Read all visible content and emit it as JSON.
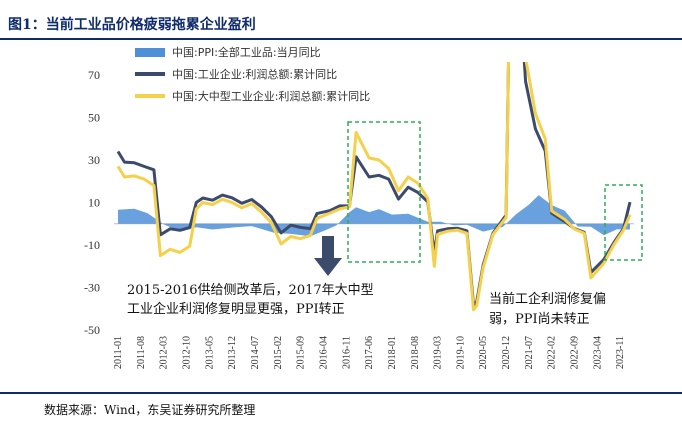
{
  "title": "图1：当前工业品价格疲弱拖累企业盈利",
  "source": "数据来源：Wind，东吴证券研究所整理",
  "chart_data": {
    "type": "bar+line",
    "ylim": [
      -50,
      75
    ],
    "yticks": [
      70,
      50,
      30,
      10,
      -10,
      -30,
      -50
    ],
    "xtick_labels": [
      "2011-01",
      "2011-08",
      "2012-03",
      "2012-10",
      "2013-05",
      "2013-12",
      "2014-07",
      "2015-02",
      "2015-09",
      "2016-04",
      "2016-11",
      "2017-06",
      "2018-01",
      "2018-08",
      "2019-03",
      "2019-10",
      "2020-05",
      "2020-12",
      "2021-07",
      "2022-02",
      "2022-09",
      "2023-04",
      "2023-11"
    ],
    "legend": [
      {
        "label": "中国:PPI:全部工业品:当月同比",
        "kind": "area",
        "color": "#4f8fd8"
      },
      {
        "label": "中国:工业企业:利润总额:累计同比",
        "kind": "line",
        "color": "#3c4a6b"
      },
      {
        "label": "中国:大中型工业企业:利润总额:累计同比",
        "kind": "line",
        "color": "#f5d04a"
      }
    ],
    "series": [
      {
        "name": "中国:PPI:全部工业品:当月同比",
        "x": [
          "2011-01",
          "2011-06",
          "2011-10",
          "2012-03",
          "2012-08",
          "2013-01",
          "2013-06",
          "2014-01",
          "2014-06",
          "2015-01",
          "2015-06",
          "2015-12",
          "2016-04",
          "2016-08",
          "2016-12",
          "2017-02",
          "2017-06",
          "2017-09",
          "2018-01",
          "2018-06",
          "2018-12",
          "2019-04",
          "2019-08",
          "2019-12",
          "2020-05",
          "2020-11",
          "2021-03",
          "2021-07",
          "2021-10",
          "2022-02",
          "2022-06",
          "2022-10",
          "2023-02",
          "2023-06",
          "2023-10",
          "2024-02"
        ],
        "y": [
          6.6,
          7.1,
          5.0,
          -0.3,
          -3.5,
          -1.6,
          -2.7,
          -1.6,
          -1.1,
          -4.3,
          -4.8,
          -5.9,
          -3.4,
          -0.8,
          5.5,
          7.8,
          5.5,
          6.9,
          4.3,
          4.7,
          0.9,
          0.9,
          -0.8,
          -0.5,
          -3.7,
          -1.5,
          4.4,
          9.0,
          13.5,
          8.8,
          6.1,
          -1.3,
          -1.4,
          -5.4,
          -2.6,
          -2.7
        ]
      },
      {
        "name": "中国:工业企业:利润总额:累计同比",
        "x": [
          "2011-01",
          "2011-03",
          "2011-06",
          "2011-09",
          "2011-12",
          "2012-02",
          "2012-05",
          "2012-08",
          "2012-11",
          "2013-01",
          "2013-03",
          "2013-06",
          "2013-09",
          "2013-12",
          "2014-03",
          "2014-06",
          "2014-09",
          "2014-12",
          "2015-03",
          "2015-06",
          "2015-09",
          "2015-12",
          "2016-02",
          "2016-06",
          "2016-09",
          "2016-12",
          "2017-02",
          "2017-06",
          "2017-09",
          "2017-12",
          "2018-03",
          "2018-06",
          "2018-09",
          "2018-12",
          "2019-02",
          "2019-03",
          "2019-06",
          "2019-09",
          "2019-12",
          "2020-02",
          "2020-03",
          "2020-05",
          "2020-08",
          "2020-12",
          "2021-01",
          "2021-03",
          "2021-06",
          "2021-09",
          "2021-12",
          "2022-02",
          "2022-06",
          "2022-09",
          "2022-12",
          "2023-02",
          "2023-06",
          "2023-09",
          "2023-12",
          "2024-02"
        ],
        "y": [
          34.0,
          29.0,
          28.7,
          27.0,
          25.4,
          -5.2,
          -2.4,
          -3.1,
          -1.8,
          10.0,
          12.1,
          11.1,
          13.5,
          12.2,
          9.6,
          11.4,
          7.9,
          3.3,
          -4.3,
          -0.7,
          -1.7,
          -2.3,
          4.8,
          6.2,
          8.4,
          8.5,
          31.5,
          22.0,
          22.8,
          21.0,
          11.6,
          17.2,
          14.7,
          10.3,
          -14.0,
          -3.3,
          -2.4,
          -2.1,
          -3.3,
          -38.3,
          -36.7,
          -19.3,
          -4.4,
          4.1,
          100.0,
          137.3,
          66.9,
          44.7,
          34.3,
          5.0,
          1.0,
          -2.3,
          -4.0,
          -22.9,
          -16.8,
          -9.0,
          -2.3,
          10.2
        ]
      },
      {
        "name": "中国:大中型工业企业:利润总额:累计同比",
        "x": [
          "2011-01",
          "2011-03",
          "2011-06",
          "2011-09",
          "2011-12",
          "2012-02",
          "2012-05",
          "2012-08",
          "2012-11",
          "2013-01",
          "2013-03",
          "2013-06",
          "2013-09",
          "2013-12",
          "2014-03",
          "2014-06",
          "2014-09",
          "2014-12",
          "2015-03",
          "2015-06",
          "2015-09",
          "2015-12",
          "2016-02",
          "2016-06",
          "2016-09",
          "2016-12",
          "2017-02",
          "2017-06",
          "2017-09",
          "2017-12",
          "2018-03",
          "2018-06",
          "2018-09",
          "2018-12",
          "2019-02",
          "2019-03",
          "2019-06",
          "2019-09",
          "2019-12",
          "2020-02",
          "2020-03",
          "2020-05",
          "2020-08",
          "2020-12",
          "2021-01",
          "2021-03",
          "2021-06",
          "2021-09",
          "2021-12",
          "2022-02",
          "2022-06",
          "2022-09",
          "2022-12",
          "2023-02",
          "2023-06",
          "2023-09",
          "2023-12",
          "2024-02"
        ],
        "y": [
          27.0,
          22.0,
          22.5,
          21.0,
          18.0,
          -15.0,
          -12.0,
          -13.5,
          -10.5,
          7.0,
          10.0,
          9.0,
          11.5,
          10.0,
          7.5,
          9.5,
          5.5,
          0.5,
          -9.5,
          -6.0,
          -7.0,
          -5.5,
          2.5,
          5.0,
          7.0,
          8.0,
          43.0,
          31.0,
          30.0,
          26.0,
          15.5,
          22.0,
          19.0,
          12.0,
          -20.0,
          -5.0,
          -3.5,
          -3.0,
          -4.5,
          -40.5,
          -38.5,
          -20.5,
          -5.0,
          3.0,
          100.0,
          150.0,
          78.0,
          52.0,
          40.0,
          6.0,
          2.0,
          -2.5,
          -4.5,
          -25.5,
          -18.5,
          -10.0,
          -3.0,
          4.2
        ]
      }
    ],
    "annotations": [
      {
        "lines": [
          "2015-2016供给侧改革后，2017年大中型",
          "工业企业利润修复明显更强，PPI转正"
        ]
      },
      {
        "lines": [
          "当前工企利润修复偏",
          "弱，PPI尚未转正"
        ]
      }
    ]
  }
}
